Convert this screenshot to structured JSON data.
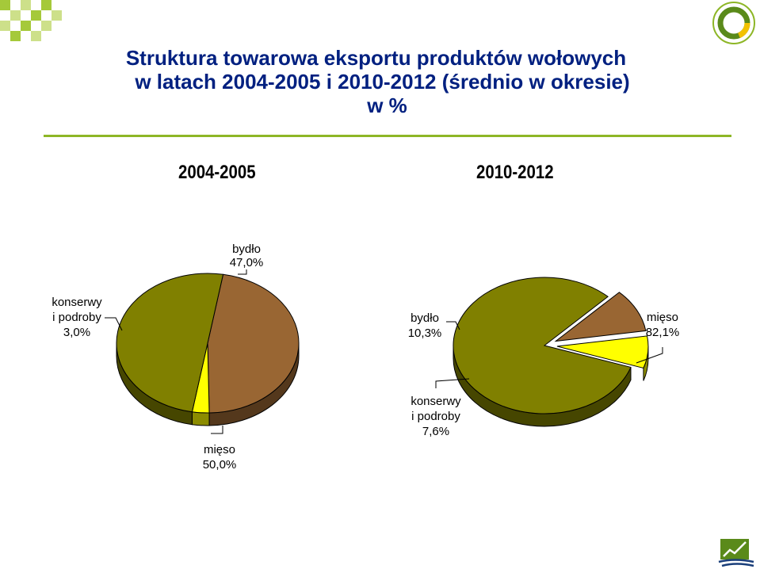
{
  "title": {
    "line1": "Struktura towarowa eksportu produktów wołowych",
    "line2": "w latach 2004-2005 i 2010-2012 (średnio w okresie)",
    "line3": "w %"
  },
  "colors": {
    "title": "#002080",
    "rule": "#8db626",
    "bydlo": "#996633",
    "konserwy": "#ffff00",
    "mieso": "#808000"
  },
  "chart_data": [
    {
      "type": "pie",
      "title": "2004-2005",
      "slices": [
        {
          "label_lines": [
            "bydło",
            "47,0%"
          ],
          "value": 47.0,
          "color": "#996633"
        },
        {
          "label_lines": [
            "konserwy",
            "i podroby",
            "3,0%"
          ],
          "value": 3.0,
          "color": "#ffff00"
        },
        {
          "label_lines": [
            "mięso",
            "50,0%"
          ],
          "value": 50.0,
          "color": "#808000"
        }
      ]
    },
    {
      "type": "pie",
      "title": "2010-2012",
      "slices": [
        {
          "label_lines": [
            "bydło",
            "10,3%"
          ],
          "value": 10.3,
          "color": "#996633"
        },
        {
          "label_lines": [
            "konserwy",
            "i podroby",
            "7,6%"
          ],
          "value": 7.6,
          "color": "#ffff00"
        },
        {
          "label_lines": [
            "mięso",
            "82,1%"
          ],
          "value": 82.1,
          "color": "#808000"
        }
      ]
    }
  ]
}
